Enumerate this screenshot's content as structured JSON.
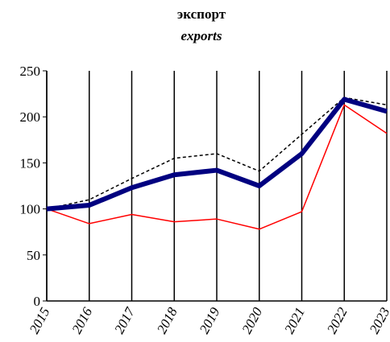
{
  "chart_data": {
    "type": "line",
    "title": "экспорт",
    "subtitle": "exports",
    "categories": [
      "2015",
      "2016",
      "2017",
      "2018",
      "2019",
      "2020",
      "2021",
      "2022",
      "2023"
    ],
    "series": [
      {
        "color": "#000000",
        "style": "dashed",
        "width": 1.5,
        "values": [
          100,
          110,
          133,
          155,
          160,
          141,
          181,
          221,
          213
        ]
      },
      {
        "color": "#ff0000",
        "style": "solid",
        "width": 1.5,
        "values": [
          100,
          84,
          94,
          86,
          89,
          78,
          97,
          213,
          182
        ]
      },
      {
        "color": "#000080",
        "style": "solid",
        "width": 6,
        "values": [
          100,
          104,
          123,
          137,
          142,
          125,
          160,
          219,
          206
        ]
      }
    ],
    "ylim": [
      0,
      250
    ],
    "yticks": [
      0,
      50,
      100,
      150,
      200,
      250
    ],
    "grid": true
  }
}
